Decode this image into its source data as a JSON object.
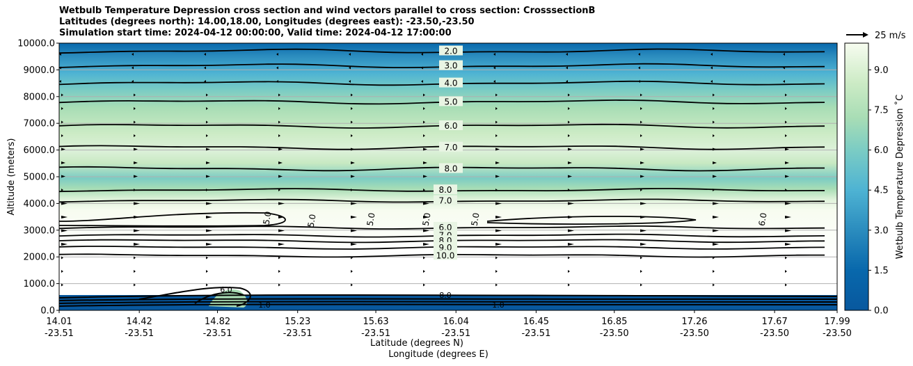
{
  "chart_data": {
    "type": "contour",
    "title_lines": [
      "Wetbulb Temperature Depression cross section and wind vectors parallel to cross section: CrosssectionB",
      "Latitudes (degrees north): 14.00,18.00, Longitudes (degrees east): -23.50,-23.50",
      "Simulation start time: 2024-04-12 00:00:00, Valid time: 2024-04-12 17:00:00"
    ],
    "ylabel": "Altitude (meters)",
    "xlabel_lat": "Latitude (degrees N)",
    "xlabel_lon": "Longitude (degrees E)",
    "ylim": [
      0,
      10000
    ],
    "y_ticks": [
      "0.0",
      "1000.0",
      "2000.0",
      "3000.0",
      "4000.0",
      "5000.0",
      "6000.0",
      "7000.0",
      "8000.0",
      "9000.0",
      "10000.0"
    ],
    "x_ticks_lat": [
      "14.01",
      "14.42",
      "14.82",
      "15.23",
      "15.63",
      "16.04",
      "16.45",
      "16.85",
      "17.26",
      "17.67",
      "17.99"
    ],
    "x_ticks_lon": [
      "-23.51",
      "-23.51",
      "-23.51",
      "-23.51",
      "-23.51",
      "-23.51",
      "-23.51",
      "-23.50",
      "-23.50",
      "-23.50",
      "-23.50"
    ],
    "colorbar": {
      "label": "Wetbulb Temperature Depression ˚C",
      "range": [
        0,
        10
      ],
      "ticks": [
        "0.0",
        "1.5",
        "3.0",
        "4.5",
        "6.0",
        "7.5",
        "9.0"
      ],
      "colormap": "GnBu_r"
    },
    "quiver_key": "25 m/s",
    "contour_levels_upper": [
      {
        "label": "2.0",
        "alt": 9700
      },
      {
        "label": "3.0",
        "alt": 9150
      },
      {
        "label": "4.0",
        "alt": 8500
      },
      {
        "label": "5.0",
        "alt": 7800
      },
      {
        "label": "6.0",
        "alt": 6900
      },
      {
        "label": "7.0",
        "alt": 6100
      },
      {
        "label": "8.0",
        "alt": 5300
      }
    ],
    "contour_levels_lower": [
      {
        "label": "8.0",
        "alt": 4500
      },
      {
        "label": "7.0",
        "alt": 4100
      },
      {
        "label": "6.0",
        "alt": 3100
      },
      {
        "label": "7.0",
        "alt": 2800
      },
      {
        "label": "8.0",
        "alt": 2600
      },
      {
        "label": "9.0",
        "alt": 2350
      },
      {
        "label": "10.0",
        "alt": 2050
      }
    ],
    "inline_labels": [
      "5.0",
      "5.0",
      "5.0",
      "5.0",
      "5.0",
      "6.0"
    ],
    "surface_labels": [
      "8.0",
      "6.0",
      "1.0",
      "1.0"
    ]
  }
}
